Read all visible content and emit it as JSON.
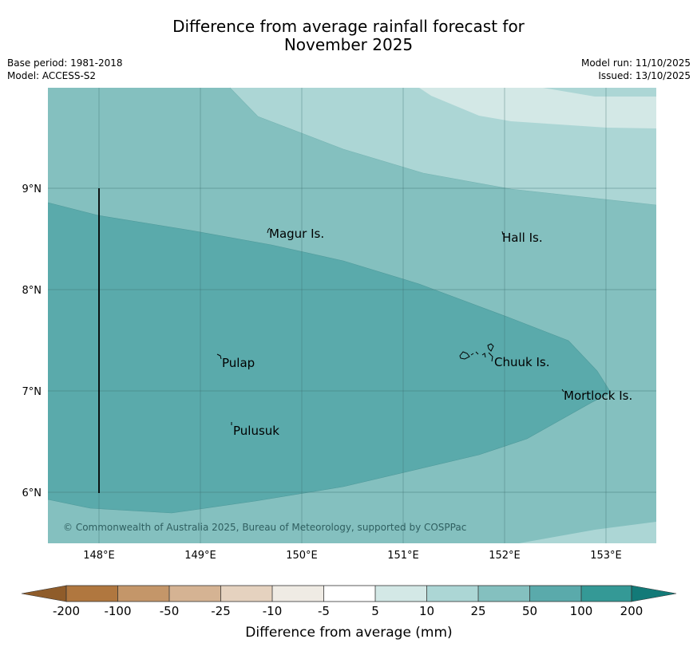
{
  "header": {
    "title_line1": "Difference from average rainfall forecast for",
    "title_line2": "November 2025",
    "base_period": "Base period: 1981-2018",
    "model": "Model: ACCESS-S2",
    "model_run": "Model run: 11/10/2025",
    "issued": "Issued: 13/10/2025"
  },
  "map": {
    "lon_ticks": [
      "148°E",
      "149°E",
      "150°E",
      "151°E",
      "152°E",
      "153°E"
    ],
    "lat_ticks": [
      "9°N",
      "8°N",
      "7°N",
      "6°N"
    ],
    "places": [
      {
        "name": "Magur Is.",
        "lon": 149.68,
        "lat": 8.58
      },
      {
        "name": "Hall Is.",
        "lon": 151.98,
        "lat": 8.54
      },
      {
        "name": "Pulap",
        "lon": 149.2,
        "lat": 7.33
      },
      {
        "name": "Chuuk Is.",
        "lon": 151.85,
        "lat": 7.34
      },
      {
        "name": "Mortlock Is.",
        "lon": 152.58,
        "lat": 7.0
      },
      {
        "name": "Pulusuk",
        "lon": 149.32,
        "lat": 6.66
      }
    ],
    "copyright": "© Commonwealth of Australia 2025, Bureau of Meteorology, supported by COSPPac"
  },
  "legend": {
    "title": "Difference from average (mm)",
    "ticks": [
      "-200",
      "-100",
      "-50",
      "-25",
      "-10",
      "-5",
      "5",
      "10",
      "25",
      "50",
      "100",
      "200"
    ],
    "bins": [
      {
        "range": "< -200",
        "color": "#8f5c2a"
      },
      {
        "range": "-200 to -100",
        "color": "#b0773f"
      },
      {
        "range": "-100 to -50",
        "color": "#c49669"
      },
      {
        "range": "-50 to -25",
        "color": "#d5b393"
      },
      {
        "range": "-25 to -10",
        "color": "#e5d2bf"
      },
      {
        "range": "-10 to -5",
        "color": "#efebe4"
      },
      {
        "range": "-5 to 5",
        "color": "#ffffff"
      },
      {
        "range": "5 to 10",
        "color": "#d3e8e6"
      },
      {
        "range": "10 to 25",
        "color": "#acd6d5"
      },
      {
        "range": "25 to 50",
        "color": "#84c0bf"
      },
      {
        "range": "50 to 100",
        "color": "#5aaaab"
      },
      {
        "range": "100 to 200",
        "color": "#349996"
      },
      {
        "range": "> 200",
        "color": "#137a78"
      }
    ]
  }
}
